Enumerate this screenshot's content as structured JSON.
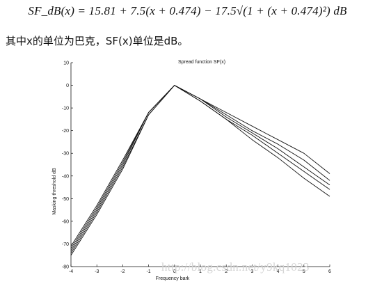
{
  "formula": "SF_dB(x) = 15.81 + 7.5(x + 0.474) − 17.5√(1 + (x + 0.474)²) dB",
  "caption": "其中x的单位为巴克，SF(x)单位是dB。",
  "watermark": "http://blog.csdn.net/y9kq1023",
  "chart_data": {
    "type": "line",
    "title": "Spread function SF(x)",
    "xlabel": "Frequency bark",
    "ylabel": "Masking threshold dB",
    "xlim": [
      -4,
      6
    ],
    "ylim": [
      -80,
      10
    ],
    "x_ticks": [
      -4,
      -3,
      -2,
      -1,
      0,
      1,
      2,
      3,
      4,
      5,
      6
    ],
    "y_ticks": [
      10,
      0,
      -10,
      -20,
      -30,
      -40,
      -50,
      -60,
      -70,
      -80
    ],
    "grid": false,
    "x": [
      -4,
      -3,
      -2,
      -1,
      0,
      1,
      2,
      3,
      4,
      5,
      6
    ],
    "series": [
      {
        "values": [
          -71,
          -53,
          -33,
          -12,
          0,
          -6,
          -12,
          -18,
          -24,
          -30,
          -39
        ]
      },
      {
        "values": [
          -72,
          -54,
          -34,
          -12,
          0,
          -6,
          -13,
          -20,
          -26,
          -33,
          -42
        ]
      },
      {
        "values": [
          -73,
          -55,
          -35,
          -12,
          0,
          -6,
          -14,
          -21,
          -28,
          -36,
          -44
        ]
      },
      {
        "values": [
          -74,
          -56,
          -36,
          -13,
          0,
          -7,
          -15,
          -22,
          -30,
          -38,
          -46
        ]
      },
      {
        "values": [
          -75,
          -57,
          -37,
          -13,
          0,
          -7,
          -15,
          -24,
          -32,
          -41,
          -49
        ]
      }
    ],
    "line_color": "#111111"
  }
}
